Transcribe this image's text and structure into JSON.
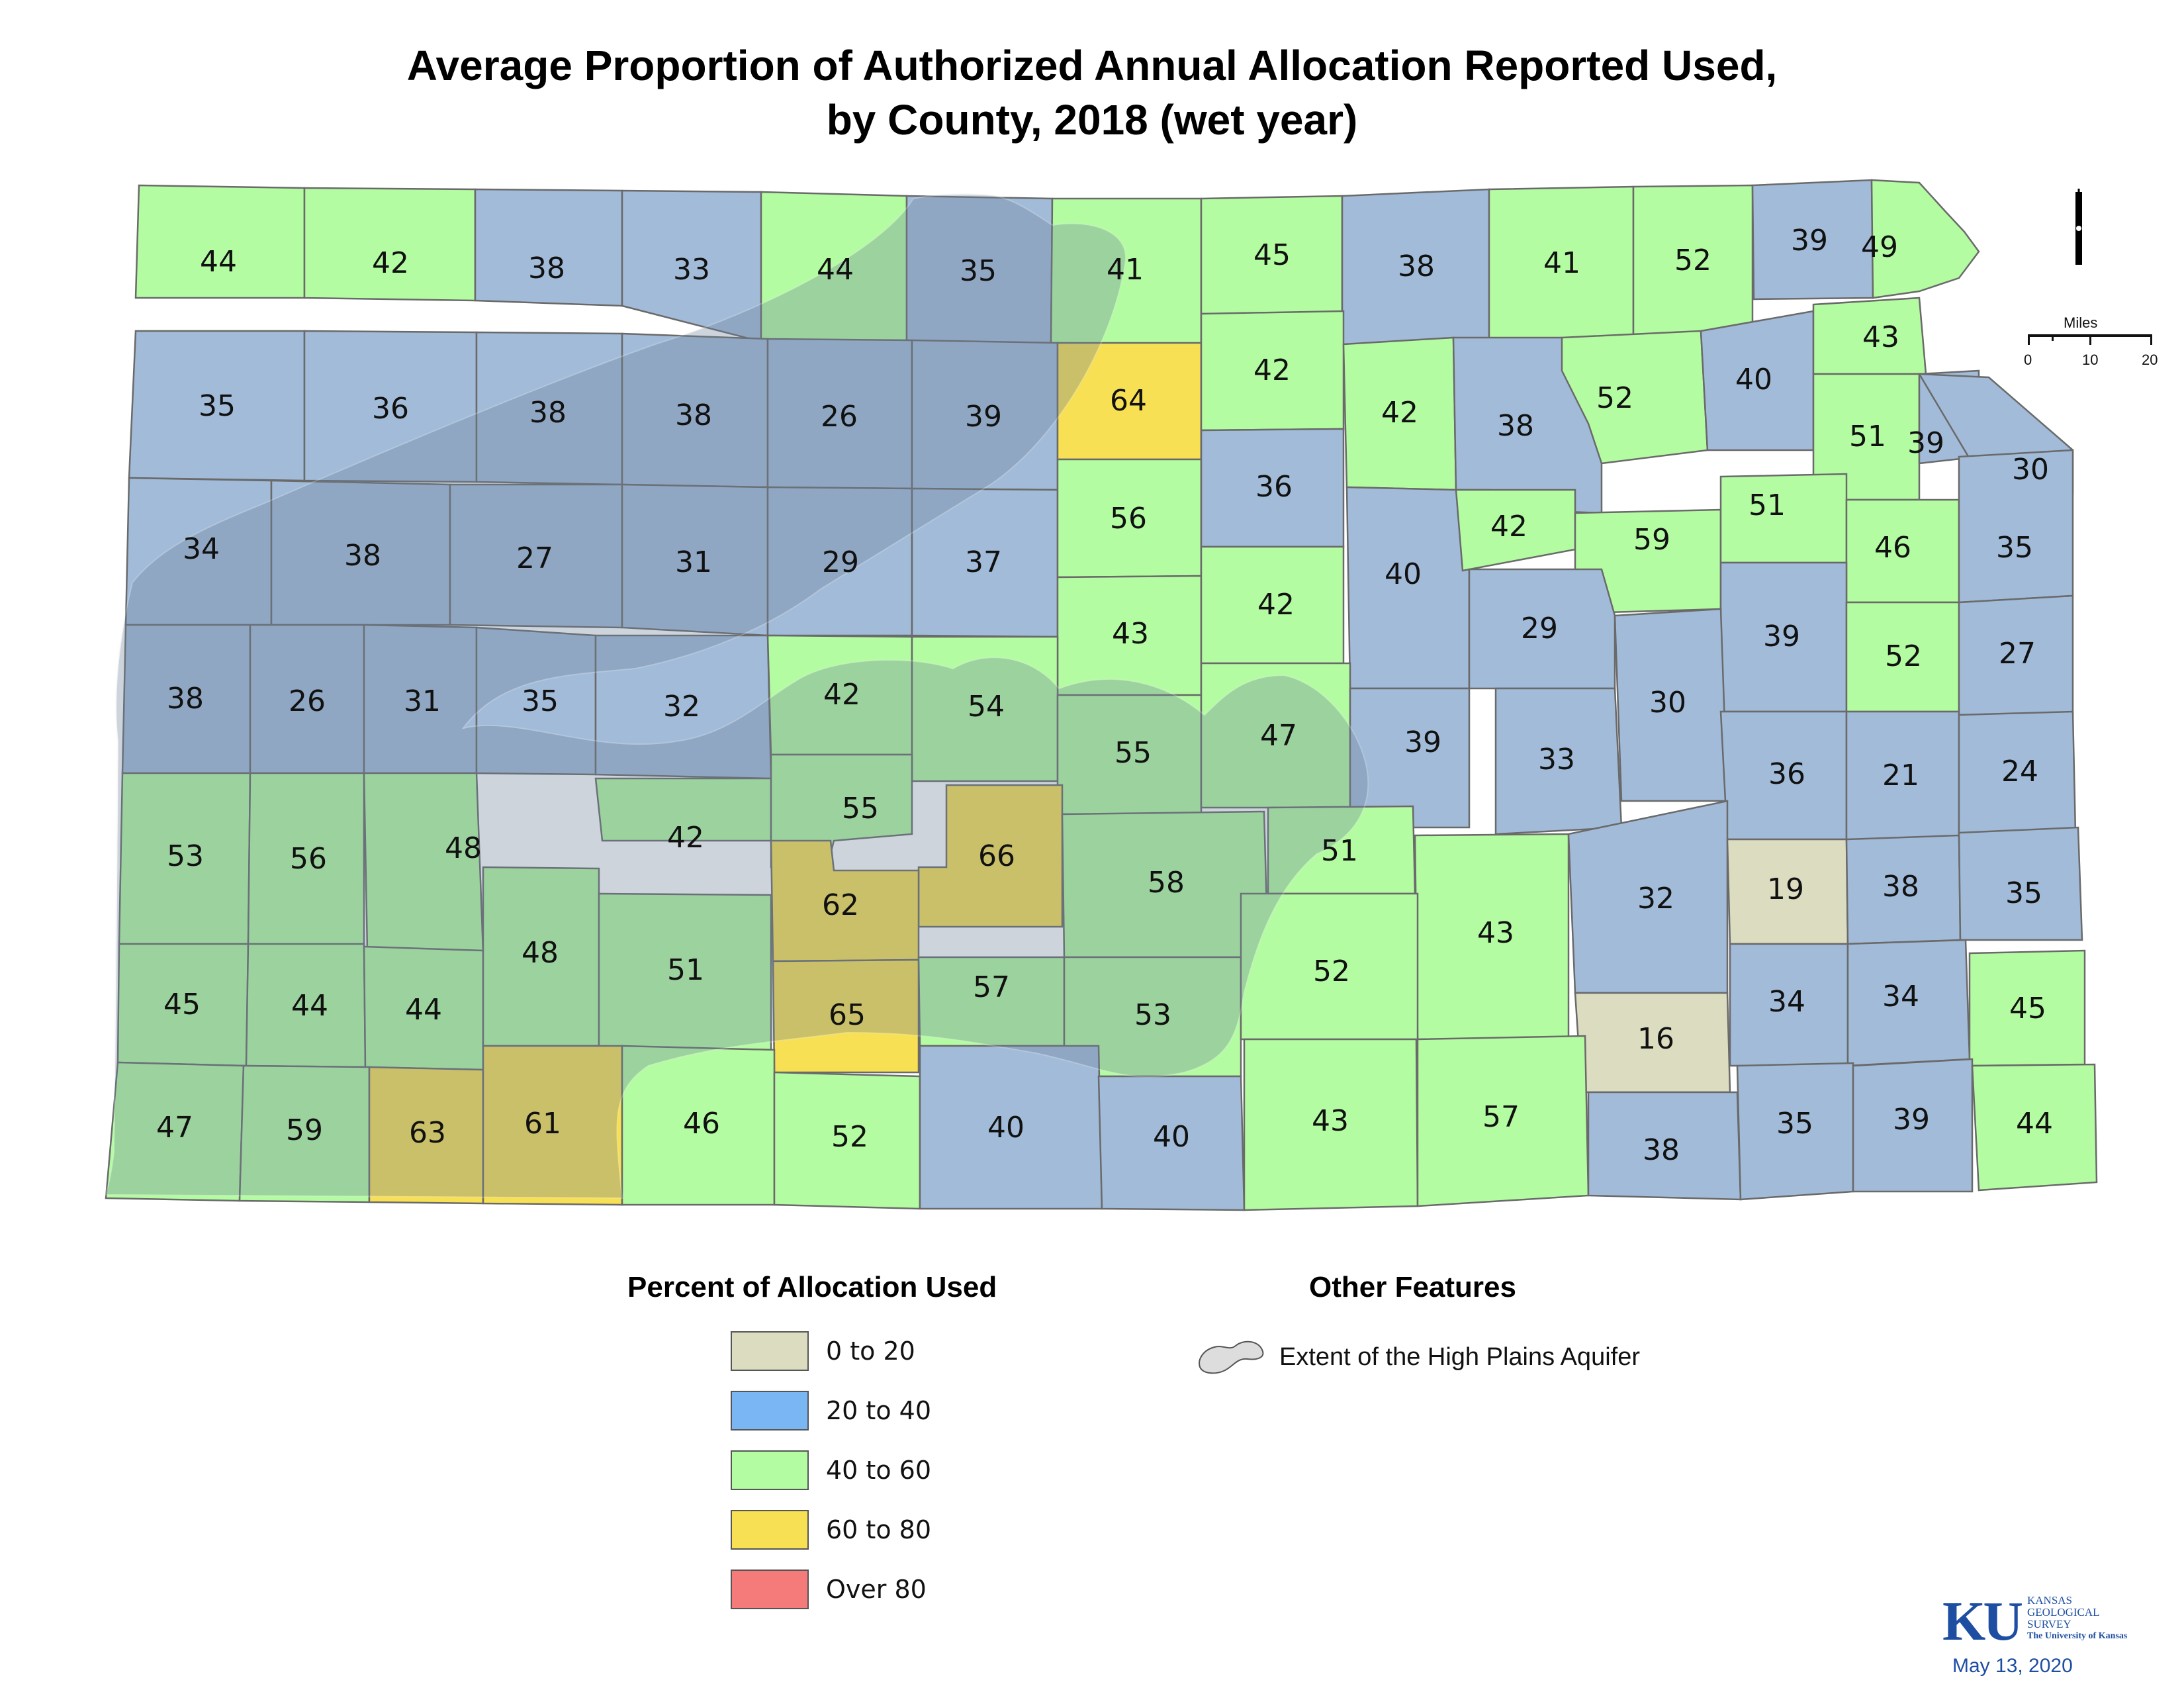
{
  "title": {
    "line1": "Average Proportion of Authorized Annual Allocation Reported Used,",
    "line2": "by County, 2018 (wet year)"
  },
  "colors": {
    "0 to 20": "#dcdcc0",
    "20 to 40": "#a1bbd9",
    "40 to 60": "#b4fca2",
    "60 to 80": "#f7e053",
    "Over 80": "#f57a7a",
    "legend_20 to 40": "#79b6f3",
    "aquifer_overlay": "#6e8098"
  },
  "legend": {
    "heading": "Percent of Allocation Used",
    "items": [
      {
        "label": "0 to 20",
        "color": "#dcdcc0"
      },
      {
        "label": "20 to 40",
        "color": "#79b6f3"
      },
      {
        "label": "40 to 60",
        "color": "#b4fca2"
      },
      {
        "label": "60 to 80",
        "color": "#f7e053"
      },
      {
        "label": "Over 80",
        "color": "#f57a7a"
      }
    ]
  },
  "other_features": {
    "heading": "Other Features",
    "items": [
      {
        "label": "Extent of the High Plains Aquifer",
        "icon": "aquifer-extent-icon"
      }
    ]
  },
  "scale_bar": {
    "title": "Miles",
    "ticks": [
      "0",
      "10",
      "20"
    ]
  },
  "north_arrow": {
    "icon": "north-arrow-icon"
  },
  "credits": {
    "logo_mark": "KU",
    "logo_lines": [
      "KANSAS",
      "GEOLOGICAL",
      "SURVEY",
      "The University of Kansas"
    ],
    "date": "May 13, 2020"
  },
  "counties": [
    {
      "value": 44,
      "cls": "40 to 60"
    },
    {
      "value": 42,
      "cls": "40 to 60"
    },
    {
      "value": 38,
      "cls": "20 to 40"
    },
    {
      "value": 33,
      "cls": "20 to 40"
    },
    {
      "value": 44,
      "cls": "40 to 60"
    },
    {
      "value": 35,
      "cls": "20 to 40"
    },
    {
      "value": 41,
      "cls": "40 to 60"
    },
    {
      "value": 45,
      "cls": "40 to 60"
    },
    {
      "value": 38,
      "cls": "20 to 40"
    },
    {
      "value": 41,
      "cls": "40 to 60"
    },
    {
      "value": 52,
      "cls": "40 to 60"
    },
    {
      "value": 39,
      "cls": "20 to 40"
    },
    {
      "value": 49,
      "cls": "40 to 60"
    },
    {
      "value": 35,
      "cls": "20 to 40"
    },
    {
      "value": 36,
      "cls": "20 to 40"
    },
    {
      "value": 38,
      "cls": "20 to 40"
    },
    {
      "value": 38,
      "cls": "20 to 40"
    },
    {
      "value": 26,
      "cls": "20 to 40"
    },
    {
      "value": 39,
      "cls": "20 to 40"
    },
    {
      "value": 64,
      "cls": "60 to 80"
    },
    {
      "value": 42,
      "cls": "40 to 60"
    },
    {
      "value": 42,
      "cls": "40 to 60"
    },
    {
      "value": 38,
      "cls": "20 to 40"
    },
    {
      "value": 52,
      "cls": "40 to 60"
    },
    {
      "value": 40,
      "cls": "20 to 40"
    },
    {
      "value": 43,
      "cls": "40 to 60"
    },
    {
      "value": 51,
      "cls": "40 to 60"
    },
    {
      "value": 39,
      "cls": "20 to 40"
    },
    {
      "value": 30,
      "cls": "20 to 40"
    },
    {
      "value": 34,
      "cls": "20 to 40"
    },
    {
      "value": 38,
      "cls": "20 to 40"
    },
    {
      "value": 27,
      "cls": "20 to 40"
    },
    {
      "value": 31,
      "cls": "20 to 40"
    },
    {
      "value": 29,
      "cls": "20 to 40"
    },
    {
      "value": 37,
      "cls": "20 to 40"
    },
    {
      "value": 56,
      "cls": "40 to 60"
    },
    {
      "value": 36,
      "cls": "20 to 40"
    },
    {
      "value": 40,
      "cls": "20 to 40"
    },
    {
      "value": 42,
      "cls": "40 to 60"
    },
    {
      "value": 59,
      "cls": "40 to 60"
    },
    {
      "value": 51,
      "cls": "40 to 60"
    },
    {
      "value": 46,
      "cls": "40 to 60"
    },
    {
      "value": 35,
      "cls": "20 to 40"
    },
    {
      "value": 43,
      "cls": "40 to 60"
    },
    {
      "value": 42,
      "cls": "40 to 60"
    },
    {
      "value": 29,
      "cls": "20 to 40"
    },
    {
      "value": 39,
      "cls": "20 to 40"
    },
    {
      "value": 52,
      "cls": "40 to 60"
    },
    {
      "value": 27,
      "cls": "20 to 40"
    },
    {
      "value": 38,
      "cls": "20 to 40"
    },
    {
      "value": 26,
      "cls": "20 to 40"
    },
    {
      "value": 31,
      "cls": "20 to 40"
    },
    {
      "value": 35,
      "cls": "20 to 40"
    },
    {
      "value": 32,
      "cls": "20 to 40"
    },
    {
      "value": 42,
      "cls": "40 to 60"
    },
    {
      "value": 54,
      "cls": "40 to 60"
    },
    {
      "value": 55,
      "cls": "40 to 60"
    },
    {
      "value": 47,
      "cls": "40 to 60"
    },
    {
      "value": 39,
      "cls": "20 to 40"
    },
    {
      "value": 33,
      "cls": "20 to 40"
    },
    {
      "value": 30,
      "cls": "20 to 40"
    },
    {
      "value": 36,
      "cls": "20 to 40"
    },
    {
      "value": 21,
      "cls": "20 to 40"
    },
    {
      "value": 24,
      "cls": "20 to 40"
    },
    {
      "value": 53,
      "cls": "40 to 60"
    },
    {
      "value": 56,
      "cls": "40 to 60"
    },
    {
      "value": 48,
      "cls": "40 to 60"
    },
    {
      "value": 42,
      "cls": "40 to 60"
    },
    {
      "value": 55,
      "cls": "40 to 60"
    },
    {
      "value": 66,
      "cls": "60 to 80"
    },
    {
      "value": 62,
      "cls": "60 to 80"
    },
    {
      "value": 58,
      "cls": "40 to 60"
    },
    {
      "value": 51,
      "cls": "40 to 60"
    },
    {
      "value": 43,
      "cls": "40 to 60"
    },
    {
      "value": 32,
      "cls": "20 to 40"
    },
    {
      "value": 19,
      "cls": "0 to 20"
    },
    {
      "value": 38,
      "cls": "20 to 40"
    },
    {
      "value": 35,
      "cls": "20 to 40"
    },
    {
      "value": 45,
      "cls": "40 to 60"
    },
    {
      "value": 44,
      "cls": "40 to 60"
    },
    {
      "value": 44,
      "cls": "40 to 60"
    },
    {
      "value": 48,
      "cls": "40 to 60"
    },
    {
      "value": 51,
      "cls": "40 to 60"
    },
    {
      "value": 65,
      "cls": "60 to 80"
    },
    {
      "value": 57,
      "cls": "40 to 60"
    },
    {
      "value": 53,
      "cls": "40 to 60"
    },
    {
      "value": 52,
      "cls": "40 to 60"
    },
    {
      "value": 16,
      "cls": "0 to 20"
    },
    {
      "value": 34,
      "cls": "20 to 40"
    },
    {
      "value": 34,
      "cls": "20 to 40"
    },
    {
      "value": 45,
      "cls": "40 to 60"
    },
    {
      "value": 47,
      "cls": "40 to 60"
    },
    {
      "value": 59,
      "cls": "40 to 60"
    },
    {
      "value": 63,
      "cls": "60 to 80"
    },
    {
      "value": 61,
      "cls": "60 to 80"
    },
    {
      "value": 46,
      "cls": "40 to 60"
    },
    {
      "value": 52,
      "cls": "40 to 60"
    },
    {
      "value": 40,
      "cls": "20 to 40"
    },
    {
      "value": 40,
      "cls": "20 to 40"
    },
    {
      "value": 43,
      "cls": "40 to 60"
    },
    {
      "value": 57,
      "cls": "40 to 60"
    },
    {
      "value": 38,
      "cls": "20 to 40"
    },
    {
      "value": 35,
      "cls": "20 to 40"
    },
    {
      "value": 39,
      "cls": "20 to 40"
    },
    {
      "value": 44,
      "cls": "40 to 60"
    }
  ]
}
